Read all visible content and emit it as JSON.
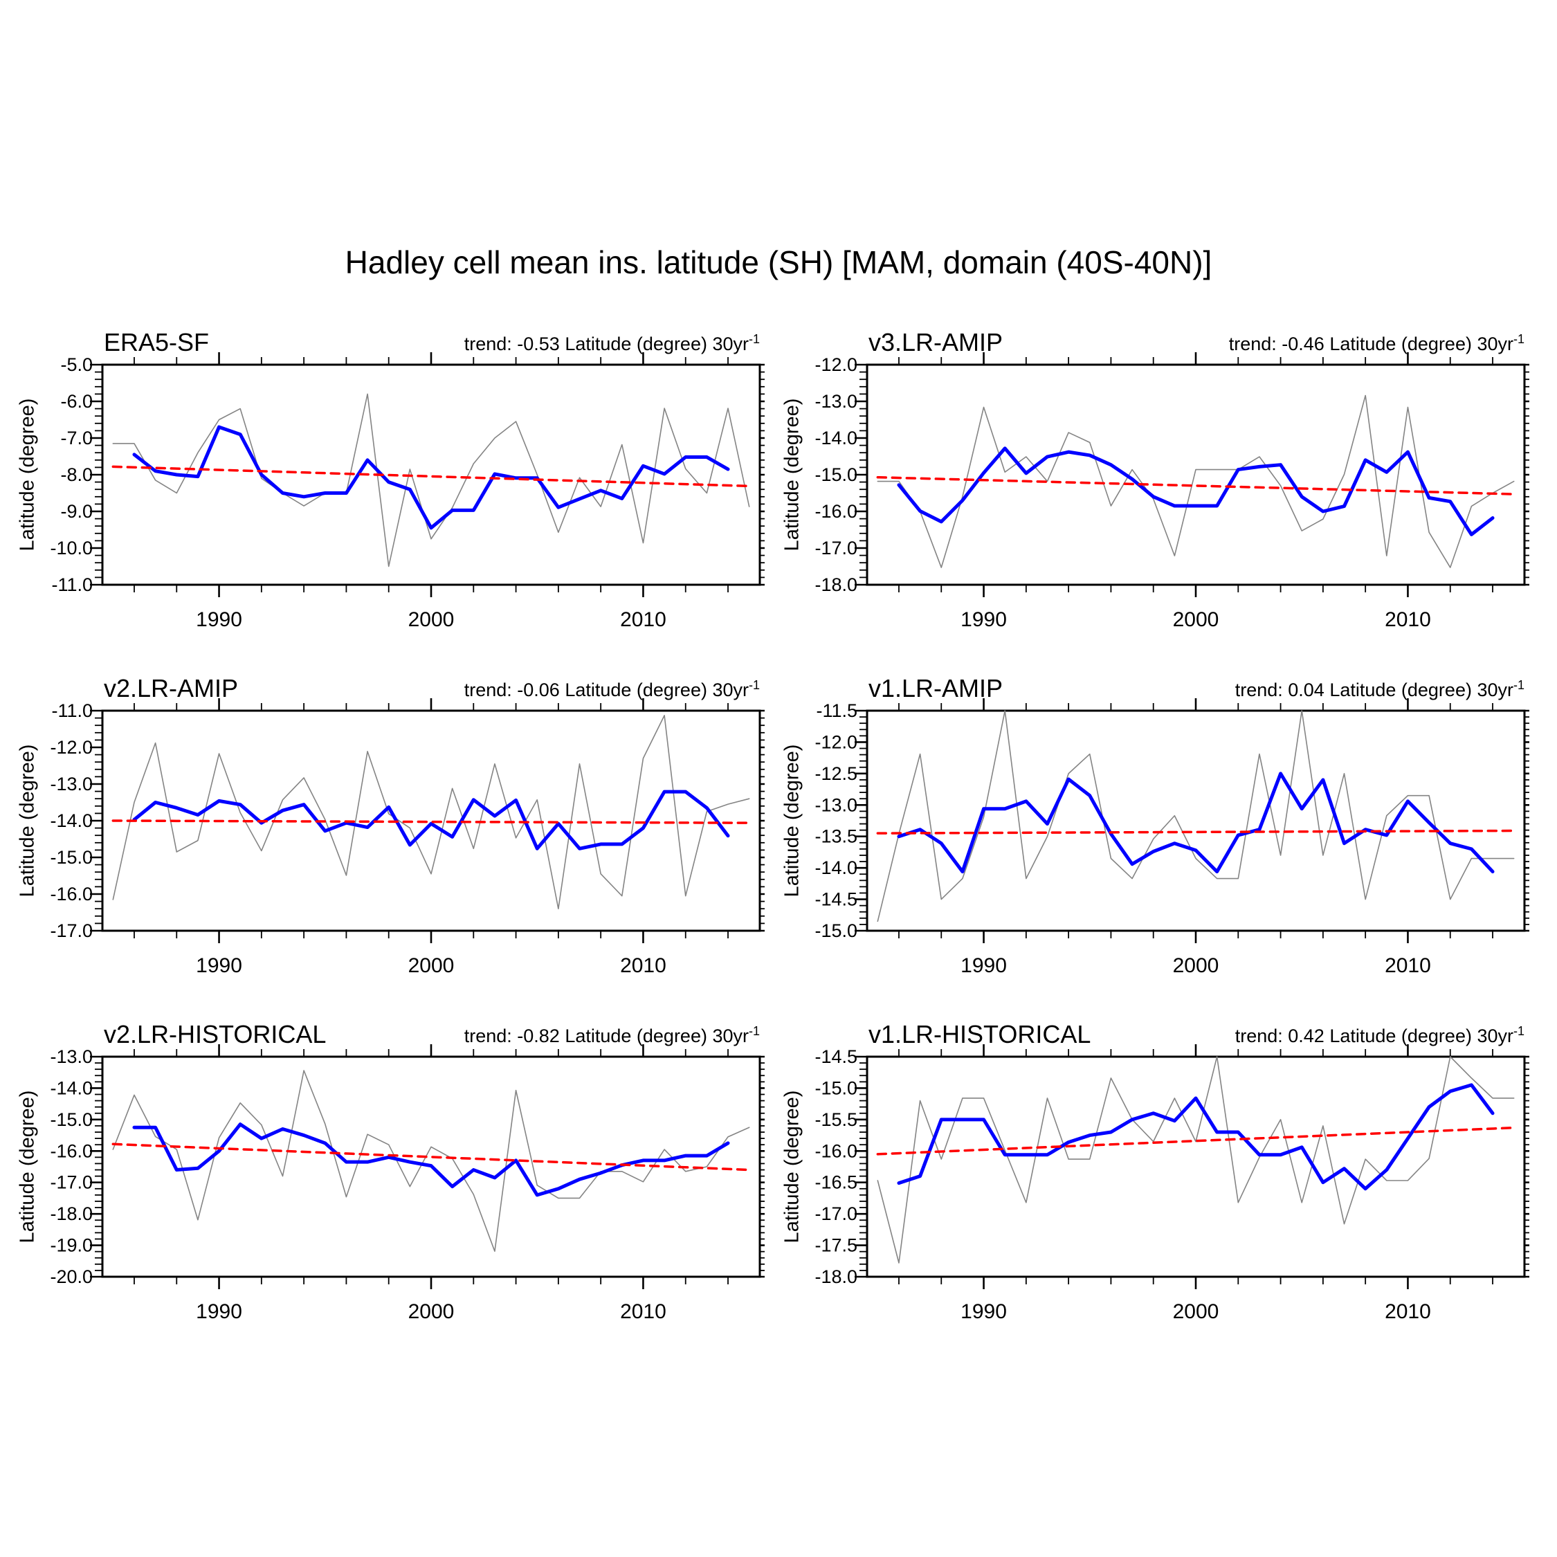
{
  "page_title": "Hadley cell mean ins. latitude (SH) [MAM, domain (40S-40N)]",
  "colors": {
    "annual_line": "#848484",
    "smoothed_line": "#0000ff",
    "trend_line": "#ff0000",
    "axis": "#000000",
    "background": "#ffffff"
  },
  "chart_data": [
    {
      "type": "line",
      "title": "ERA5-SF",
      "trend_label": "trend: -0.53 Latitude (degree) 30yr",
      "trend_sup": "-1",
      "trend_value": -0.53,
      "xlabel": "",
      "ylabel": "Latitude (degree)",
      "ylim": [
        -11.0,
        -5.0
      ],
      "ytick_step": 1.0,
      "yminor_step": 0.2,
      "xlim": [
        1984.5,
        2015.5
      ],
      "xticks": [
        1990,
        2000,
        2010
      ],
      "xminor_step": 2,
      "grid": false,
      "legend_position": "none",
      "series": [
        {
          "name": "annual",
          "x_start": 1985,
          "x_end": 2015,
          "values": [
            -7.15,
            -7.15,
            -8.15,
            -8.5,
            -7.4,
            -6.5,
            -6.2,
            -8.1,
            -8.5,
            -8.85,
            -8.5,
            -8.5,
            -5.8,
            -10.5,
            -7.85,
            -9.75,
            -8.9,
            -7.7,
            -7.0,
            -6.55,
            -8.0,
            -9.57,
            -8.08,
            -8.87,
            -7.18,
            -9.86,
            -6.19,
            -7.84,
            -8.5,
            -6.19,
            -8.87
          ]
        },
        {
          "name": "smoothed",
          "x_start": 1986,
          "x_end": 2014,
          "values": [
            -7.45,
            -7.9,
            -8.0,
            -8.05,
            -6.7,
            -6.9,
            -8.0,
            -8.5,
            -8.6,
            -8.5,
            -8.5,
            -7.6,
            -8.2,
            -8.4,
            -9.45,
            -8.97,
            -8.97,
            -7.98,
            -8.09,
            -8.09,
            -8.89,
            -8.66,
            -8.43,
            -8.65,
            -7.76,
            -7.98,
            -7.52,
            -7.52,
            -7.85
          ]
        },
        {
          "name": "trend_line",
          "x_start": 1985,
          "x_end": 2015,
          "x": [
            1985,
            2015
          ],
          "values2": [
            -7.78,
            -8.31
          ]
        }
      ]
    },
    {
      "type": "line",
      "title": "v3.LR-AMIP",
      "trend_label": "trend: -0.46 Latitude (degree) 30yr",
      "trend_sup": "-1",
      "trend_value": -0.46,
      "xlabel": "",
      "ylabel": "Latitude (degree)",
      "ylim": [
        -18.0,
        -12.0
      ],
      "ytick_step": 1.0,
      "yminor_step": 0.2,
      "xlim": [
        1984.5,
        2015.5
      ],
      "xticks": [
        1990,
        2000,
        2010
      ],
      "xminor_step": 2,
      "grid": false,
      "legend_position": "none",
      "series": [
        {
          "name": "annual",
          "x_start": 1985,
          "x_end": 2015,
          "values": [
            -15.18,
            -15.18,
            -16.0,
            -17.53,
            -15.6,
            -13.16,
            -14.93,
            -14.51,
            -15.18,
            -13.85,
            -14.12,
            -15.85,
            -14.86,
            -15.66,
            -17.21,
            -14.86,
            -14.86,
            -14.86,
            -14.51,
            -15.3,
            -16.53,
            -16.21,
            -14.99,
            -12.84,
            -17.21,
            -13.16,
            -16.57,
            -17.53,
            -15.86,
            -15.5,
            -15.18
          ]
        },
        {
          "name": "smoothed",
          "x_start": 1986,
          "x_end": 2014,
          "values": [
            -15.28,
            -15.99,
            -16.28,
            -15.7,
            -14.95,
            -14.28,
            -14.96,
            -14.51,
            -14.38,
            -14.47,
            -14.73,
            -15.12,
            -15.6,
            -15.85,
            -15.85,
            -15.85,
            -14.86,
            -14.78,
            -14.73,
            -15.6,
            -16.0,
            -15.86,
            -14.6,
            -14.93,
            -14.38,
            -15.63,
            -15.73,
            -16.63,
            -16.18
          ]
        },
        {
          "name": "trend_line",
          "x_start": 1985,
          "x_end": 2015,
          "x": [
            1985,
            2015
          ],
          "values2": [
            -15.07,
            -15.53
          ]
        }
      ]
    },
    {
      "type": "line",
      "title": "v2.LR-AMIP",
      "trend_label": "trend: -0.06 Latitude (degree) 30yr",
      "trend_sup": "-1",
      "trend_value": -0.06,
      "xlabel": "",
      "ylabel": "Latitude (degree)",
      "ylim": [
        -17.0,
        -11.0
      ],
      "ytick_step": 1.0,
      "yminor_step": 0.2,
      "xlim": [
        1984.5,
        2015.5
      ],
      "xticks": [
        1990,
        2000,
        2010
      ],
      "xminor_step": 2,
      "grid": false,
      "legend_position": "none",
      "series": [
        {
          "name": "annual",
          "x_start": 1985,
          "x_end": 2015,
          "values": [
            -16.15,
            -13.5,
            -11.88,
            -14.85,
            -14.54,
            -12.17,
            -13.78,
            -14.82,
            -13.43,
            -12.83,
            -13.97,
            -15.49,
            -12.11,
            -13.81,
            -14.2,
            -15.45,
            -13.12,
            -14.76,
            -12.45,
            -14.47,
            -13.43,
            -16.4,
            -12.45,
            -15.45,
            -16.05,
            -12.3,
            -11.13,
            -16.05,
            -13.75,
            -13.55,
            -13.4
          ]
        },
        {
          "name": "smoothed",
          "x_start": 1986,
          "x_end": 2014,
          "values": [
            -13.97,
            -13.5,
            -13.65,
            -13.84,
            -13.46,
            -13.56,
            -14.06,
            -13.72,
            -13.56,
            -14.28,
            -14.06,
            -14.18,
            -13.63,
            -14.66,
            -14.08,
            -14.44,
            -13.43,
            -13.87,
            -13.44,
            -14.76,
            -14.08,
            -14.76,
            -14.64,
            -14.64,
            -14.2,
            -13.21,
            -13.21,
            -13.65,
            -14.41
          ]
        },
        {
          "name": "trend_line",
          "x_start": 1985,
          "x_end": 2015,
          "x": [
            1985,
            2015
          ],
          "values2": [
            -14.0,
            -14.06
          ]
        }
      ]
    },
    {
      "type": "line",
      "title": "v1.LR-AMIP",
      "trend_label": "trend: 0.04 Latitude (degree) 30yr",
      "trend_sup": "-1",
      "trend_value": 0.04,
      "xlabel": "",
      "ylabel": "Latitude (degree)",
      "ylim": [
        -15.0,
        -11.5
      ],
      "ytick_step": 0.5,
      "yminor_step": 0.1,
      "xlim": [
        1984.5,
        2015.5
      ],
      "xticks": [
        1990,
        2000,
        2010
      ],
      "xminor_step": 2,
      "grid": false,
      "legend_position": "none",
      "series": [
        {
          "name": "annual",
          "x_start": 1985,
          "x_end": 2015,
          "values": [
            -14.85,
            -13.46,
            -12.19,
            -14.5,
            -14.17,
            -13.19,
            -11.5,
            -14.17,
            -13.5,
            -12.5,
            -12.19,
            -13.85,
            -14.17,
            -13.54,
            -13.17,
            -13.85,
            -14.17,
            -14.17,
            -12.19,
            -13.8,
            -11.5,
            -13.8,
            -12.5,
            -14.5,
            -13.17,
            -12.85,
            -12.85,
            -14.5,
            -13.85,
            -13.85,
            -13.85
          ]
        },
        {
          "name": "smoothed",
          "x_start": 1986,
          "x_end": 2014,
          "values": [
            -13.5,
            -13.39,
            -13.61,
            -14.06,
            -13.06,
            -13.06,
            -12.94,
            -13.3,
            -12.59,
            -12.85,
            -13.46,
            -13.94,
            -13.74,
            -13.61,
            -13.72,
            -14.06,
            -13.48,
            -13.39,
            -12.5,
            -13.06,
            -12.6,
            -13.61,
            -13.39,
            -13.48,
            -12.94,
            -13.28,
            -13.61,
            -13.7,
            -14.06
          ]
        },
        {
          "name": "trend_line",
          "x_start": 1985,
          "x_end": 2015,
          "x": [
            1985,
            2015
          ],
          "values2": [
            -13.45,
            -13.41
          ]
        }
      ]
    },
    {
      "type": "line",
      "title": "v2.LR-HISTORICAL",
      "trend_label": "trend: -0.82 Latitude (degree) 30yr",
      "trend_sup": "-1",
      "trend_value": -0.82,
      "xlabel": "",
      "ylabel": "Latitude (degree)",
      "ylim": [
        -20.0,
        -13.0
      ],
      "ytick_step": 1.0,
      "yminor_step": 0.2,
      "xlim": [
        1984.5,
        2015.5
      ],
      "xticks": [
        1990,
        2000,
        2010
      ],
      "xminor_step": 2,
      "grid": false,
      "legend_position": "none",
      "series": [
        {
          "name": "annual",
          "x_start": 1985,
          "x_end": 2015,
          "values": [
            -15.95,
            -14.22,
            -15.54,
            -15.95,
            -18.19,
            -15.58,
            -14.47,
            -15.17,
            -16.8,
            -13.44,
            -15.14,
            -17.46,
            -15.47,
            -15.8,
            -17.13,
            -15.87,
            -16.24,
            -17.38,
            -19.19,
            -14.07,
            -17.09,
            -17.5,
            -17.5,
            -16.65,
            -16.65,
            -16.98,
            -15.95,
            -16.65,
            -16.5,
            -15.55,
            -15.25
          ]
        },
        {
          "name": "smoothed",
          "x_start": 1986,
          "x_end": 2014,
          "values": [
            -15.25,
            -15.25,
            -16.6,
            -16.55,
            -16.0,
            -15.15,
            -15.6,
            -15.3,
            -15.5,
            -15.75,
            -16.35,
            -16.35,
            -16.2,
            -16.35,
            -16.47,
            -17.13,
            -16.6,
            -16.85,
            -16.3,
            -17.4,
            -17.2,
            -16.9,
            -16.7,
            -16.45,
            -16.3,
            -16.3,
            -16.15,
            -16.15,
            -15.75
          ]
        },
        {
          "name": "trend_line",
          "x_start": 1985,
          "x_end": 2015,
          "x": [
            1985,
            2015
          ],
          "values2": [
            -15.78,
            -16.6
          ]
        }
      ]
    },
    {
      "type": "line",
      "title": "v1.LR-HISTORICAL",
      "trend_label": "trend: 0.42 Latitude (degree) 30yr",
      "trend_sup": "-1",
      "trend_value": 0.42,
      "xlabel": "",
      "ylabel": "Latitude (degree)",
      "ylim": [
        -18.0,
        -14.5
      ],
      "ytick_step": 0.5,
      "yminor_step": 0.1,
      "xlim": [
        1984.5,
        2015.5
      ],
      "xticks": [
        1990,
        2000,
        2010
      ],
      "xminor_step": 2,
      "grid": false,
      "legend_position": "none",
      "series": [
        {
          "name": "annual",
          "x_start": 1985,
          "x_end": 2015,
          "values": [
            -16.47,
            -17.78,
            -15.2,
            -16.13,
            -15.16,
            -15.16,
            -15.99,
            -16.82,
            -15.16,
            -16.13,
            -16.13,
            -14.84,
            -15.5,
            -15.85,
            -15.16,
            -15.85,
            -14.5,
            -16.82,
            -16.1,
            -15.5,
            -16.82,
            -15.6,
            -17.16,
            -16.13,
            -16.47,
            -16.47,
            -16.12,
            -14.5,
            -14.84,
            -15.16,
            -15.16
          ]
        },
        {
          "name": "smoothed",
          "x_start": 1986,
          "x_end": 2014,
          "values": [
            -16.51,
            -16.4,
            -15.5,
            -15.5,
            -15.5,
            -16.06,
            -16.06,
            -16.06,
            -15.86,
            -15.75,
            -15.7,
            -15.5,
            -15.4,
            -15.52,
            -15.16,
            -15.7,
            -15.7,
            -16.06,
            -16.06,
            -15.94,
            -16.5,
            -16.28,
            -16.6,
            -16.3,
            -15.8,
            -15.3,
            -15.05,
            -14.95,
            -15.4
          ]
        },
        {
          "name": "trend_line",
          "x_start": 1985,
          "x_end": 2015,
          "x": [
            1985,
            2015
          ],
          "values2": [
            -16.05,
            -15.63
          ]
        }
      ]
    }
  ]
}
